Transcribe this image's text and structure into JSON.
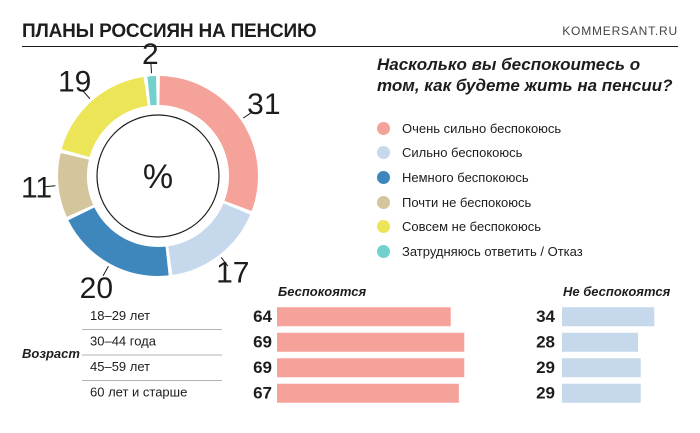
{
  "header": {
    "title": "ПЛАНЫ РОССИЯН НА ПЕНСИЮ",
    "source": "KOMMERSANT.RU"
  },
  "colors": {
    "very_worried": "#f5a29b",
    "strongly_worried": "#c5d8ec",
    "somewhat_worried": "#3d87bd",
    "almost_not": "#d4c59d",
    "not_at_all": "#ece557",
    "no_answer": "#72d1cc",
    "bar_worried": "#f5a29b",
    "bar_not_worried": "#c5d8ec"
  },
  "chart_data": [
    {
      "type": "pie",
      "title": "Насколько вы беспокоитесь о том, как будете жить на пенсии?",
      "center_label": "%",
      "slices": [
        {
          "label": "Очень сильно беспокоюсь",
          "value": 31,
          "color": "#f5a29b"
        },
        {
          "label": "Сильно беспокоюсь",
          "value": 17,
          "color": "#c5d8ec"
        },
        {
          "label": "Немного беспокоюсь",
          "value": 20,
          "color": "#3d87bd"
        },
        {
          "label": "Почти не беспокоюсь",
          "value": 11,
          "color": "#d4c59d"
        },
        {
          "label": "Совсем не беспокоюсь",
          "value": 19,
          "color": "#ece557"
        },
        {
          "label": "Затрудняюсь ответить / Отказ",
          "value": 2,
          "color": "#72d1cc"
        }
      ]
    },
    {
      "type": "bar",
      "orientation": "horizontal",
      "ylabel": "Возраст",
      "categories": [
        "18–29 лет",
        "30–44 года",
        "45–59 лет",
        "60 лет и старше"
      ],
      "series": [
        {
          "name": "Беспокоятся",
          "values": [
            64,
            69,
            69,
            67
          ],
          "color": "#f5a29b"
        },
        {
          "name": "Не беспокоятся",
          "values": [
            34,
            28,
            29,
            29
          ],
          "color": "#c5d8ec"
        }
      ],
      "xlim": [
        0,
        70
      ]
    }
  ]
}
